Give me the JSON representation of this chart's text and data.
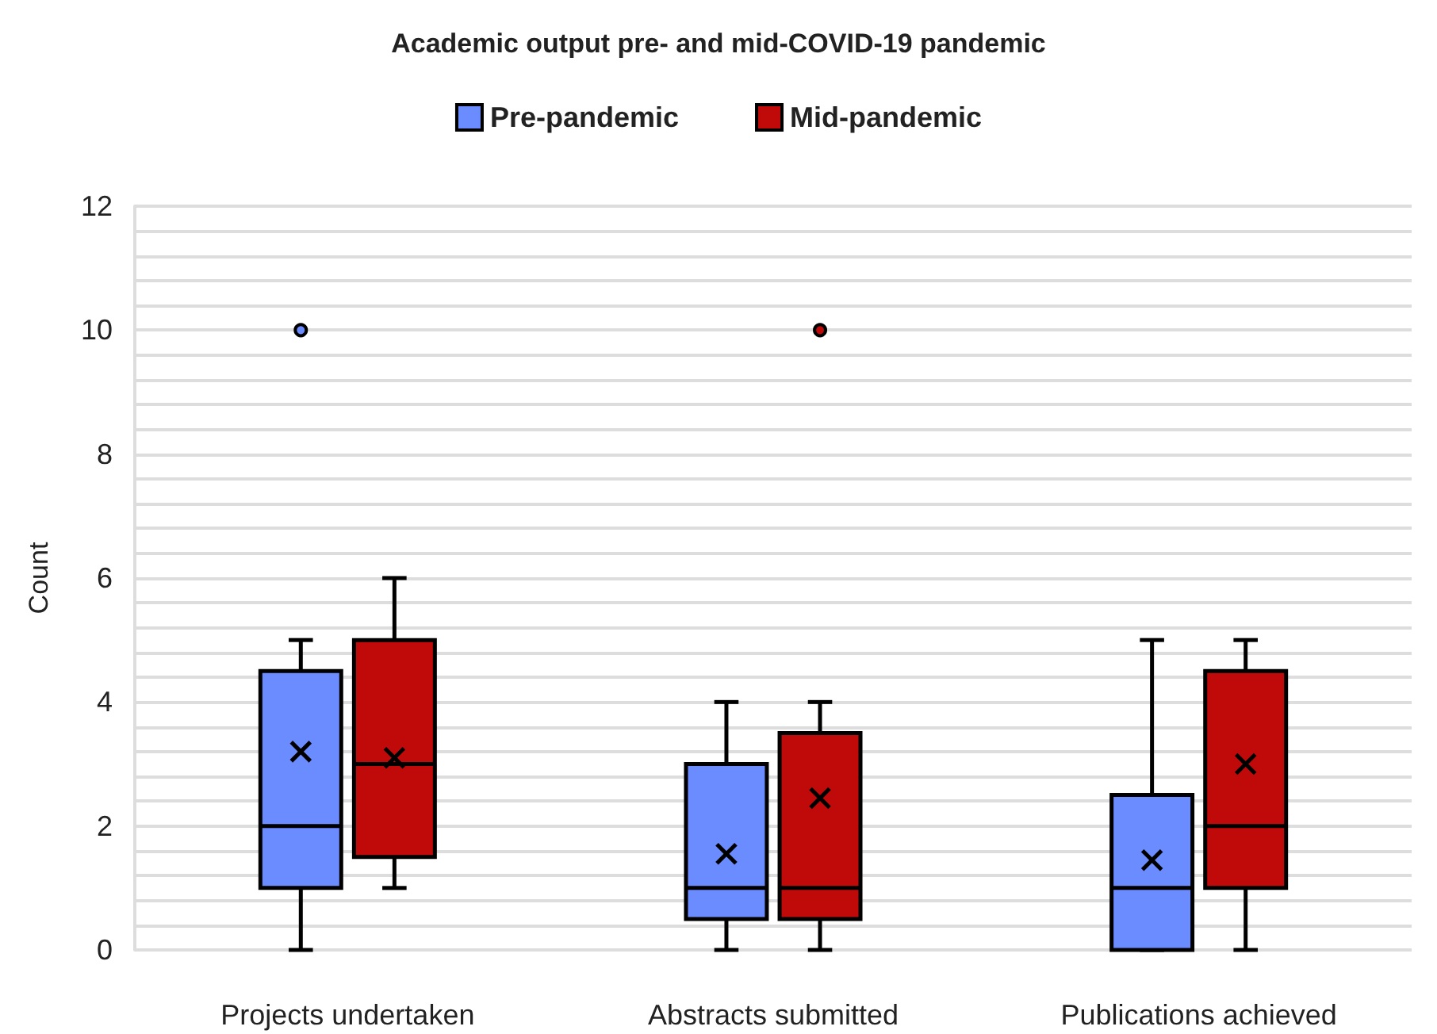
{
  "chart_data": {
    "type": "box",
    "title": "Academic output pre- and mid-COVID-19 pandemic",
    "ylabel": "Count",
    "categories": [
      "Projects undertaken",
      "Abstracts submitted",
      "Publications achieved"
    ],
    "series": [
      {
        "name": "Pre-pandemic",
        "color": "#6b8cff",
        "boxes": [
          {
            "low": 0,
            "q1": 1,
            "median": 2,
            "q3": 4.5,
            "high": 5,
            "mean": 3.2,
            "outliers": [
              10
            ]
          },
          {
            "low": 0,
            "q1": 0.5,
            "median": 1,
            "q3": 3,
            "high": 4,
            "mean": 1.55
          },
          {
            "low": 0,
            "q1": 0,
            "median": 1,
            "q3": 2.5,
            "high": 5,
            "mean": 1.45
          }
        ]
      },
      {
        "name": "Mid-pandemic",
        "color": "#c00a0a",
        "boxes": [
          {
            "low": 1,
            "q1": 1.5,
            "median": 3,
            "q3": 5,
            "high": 6,
            "mean": 3.1
          },
          {
            "low": 0,
            "q1": 0.5,
            "median": 1,
            "q3": 3.5,
            "high": 4,
            "mean": 2.45,
            "outliers": [
              10
            ]
          },
          {
            "low": 0,
            "q1": 1,
            "median": 2,
            "q3": 4.5,
            "high": 5,
            "mean": 3.0
          }
        ]
      }
    ],
    "ylim": [
      0,
      12
    ],
    "yticks": [
      0,
      2,
      4,
      6,
      8,
      10,
      12
    ],
    "grid": true,
    "legend": "top"
  }
}
